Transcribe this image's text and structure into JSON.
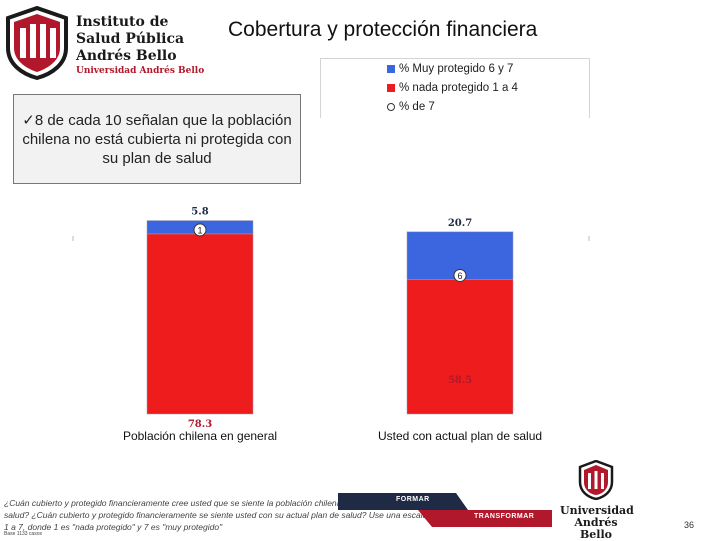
{
  "header": {
    "title": "Cobertura y protección financiera",
    "institution_lines": [
      "Instituto de",
      "Salud Pública",
      "Andrés Bello"
    ],
    "institution_sub": "Universidad Andrés Bello"
  },
  "callout": {
    "text": "✓8 de cada 10 señalan que la población chilena no está cubierta ni protegida con su plan de salud"
  },
  "chart_data": {
    "type": "bar",
    "stacked": true,
    "categories": [
      "Población chilena en general",
      "Usted con actual plan de salud"
    ],
    "series": [
      {
        "name": "% Muy protegido 6 y 7",
        "color": "#3b66e0",
        "values": [
          5.8,
          20.7
        ]
      },
      {
        "name": "% nada protegido 1 a 4",
        "color": "#ee1c1c",
        "values": [
          78.3,
          58.5
        ]
      },
      {
        "name": "% de 7",
        "color": "#ffffff",
        "values": [
          1,
          6
        ]
      }
    ],
    "data_labels": {
      "top": [
        "5.8",
        "20.7"
      ],
      "middle": [
        "1",
        "6"
      ],
      "bottom": [
        "78.3",
        "58.5"
      ]
    },
    "legend_position": "top-right",
    "grid": false
  },
  "footnote": {
    "text": "¿Cuán cubierto y protegido financieramente cree usted que se siente la población chilena con su actual plan de salud? ¿Cuán cubierto y protegido financieramente se siente usted con su actual plan de salud? Use una escala de 1 a 7, donde 1 es \"nada protegido\" y 7 es \"muy protegido\"",
    "base": "Base 1133 casos"
  },
  "ribbons": {
    "formar": "FORMAR",
    "transformar": "TRANSFORMAR"
  },
  "logo_bottom": {
    "line1": "Universidad",
    "line2": "Andrés Bello"
  },
  "page_number": "36",
  "colors": {
    "blue": "#3b66e0",
    "red": "#ee1c1c",
    "navy": "#1f2a44"
  }
}
